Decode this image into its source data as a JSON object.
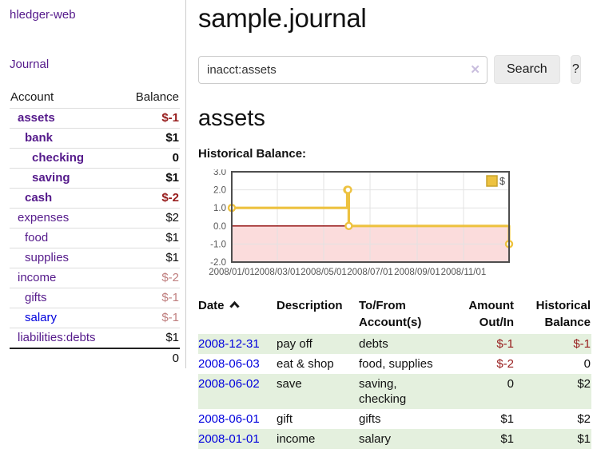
{
  "colors": {
    "link_purple": "#551a8b",
    "link_blue": "#0000dd",
    "negative_strong": "#971c1c",
    "negative_soft": "#bf7e7e",
    "row_stripe_green": "#e4f0de",
    "series_gold": "#edc240",
    "negative_region_pink": "#fbdcdc",
    "zero_line_red": "#8b0000"
  },
  "sidebar": {
    "brand": "hledger-web",
    "nav": {
      "journal": "Journal"
    },
    "accounts": {
      "headers": {
        "account": "Account",
        "balance": "Balance"
      },
      "rows": [
        {
          "name": "assets",
          "balance": "$-1",
          "depth": 1,
          "bold": true,
          "balance_style": "neg-strong",
          "link_style": "purple"
        },
        {
          "name": "bank",
          "balance": "$1",
          "depth": 2,
          "bold": true,
          "balance_style": "pos",
          "link_style": "purple"
        },
        {
          "name": "checking",
          "balance": "0",
          "depth": 3,
          "bold": true,
          "balance_style": "pos",
          "link_style": "purple"
        },
        {
          "name": "saving",
          "balance": "$1",
          "depth": 3,
          "bold": true,
          "balance_style": "pos",
          "link_style": "purple"
        },
        {
          "name": "cash",
          "balance": "$-2",
          "depth": 2,
          "bold": true,
          "balance_style": "neg-strong",
          "link_style": "purple"
        },
        {
          "name": "expenses",
          "balance": "$2",
          "depth": 1,
          "bold": false,
          "balance_style": "pos",
          "link_style": "purple"
        },
        {
          "name": "food",
          "balance": "$1",
          "depth": 2,
          "bold": false,
          "balance_style": "pos",
          "link_style": "purple"
        },
        {
          "name": "supplies",
          "balance": "$1",
          "depth": 2,
          "bold": false,
          "balance_style": "pos",
          "link_style": "purple"
        },
        {
          "name": "income",
          "balance": "$-2",
          "depth": 1,
          "bold": false,
          "balance_style": "neg-soft",
          "link_style": "purple"
        },
        {
          "name": "gifts",
          "balance": "$-1",
          "depth": 2,
          "bold": false,
          "balance_style": "neg-soft",
          "link_style": "purple"
        },
        {
          "name": "salary",
          "balance": "$-1",
          "depth": 2,
          "bold": false,
          "balance_style": "neg-soft",
          "link_style": "blue"
        },
        {
          "name": "liabilities:debts",
          "balance": "$1",
          "depth": 1,
          "bold": false,
          "balance_style": "pos",
          "link_style": "purple"
        }
      ],
      "total": "0"
    }
  },
  "main": {
    "title": "sample.journal",
    "search": {
      "value": "inacct:assets",
      "clear_icon": "✕",
      "search_button": "Search",
      "help_button": "?"
    },
    "account_heading": "assets",
    "section_label": "Historical Balance:"
  },
  "chart_data": {
    "type": "line",
    "step": true,
    "title": "Historical Balance:",
    "series": [
      {
        "name": "$",
        "color": "#edc240",
        "points": [
          {
            "date": "2008-01-01",
            "value": 1
          },
          {
            "date": "2008-06-01",
            "value": 2
          },
          {
            "date": "2008-06-02",
            "value": 2
          },
          {
            "date": "2008-06-03",
            "value": 0
          },
          {
            "date": "2008-12-31",
            "value": -1
          }
        ]
      }
    ],
    "x_start": "2008-01-01",
    "x_end": "2008-12-31",
    "xticks": [
      {
        "date": "2008-01-01",
        "label": "2008/01/01"
      },
      {
        "date": "2008-03-01",
        "label": "2008/03/01"
      },
      {
        "date": "2008-05-01",
        "label": "2008/05/01"
      },
      {
        "date": "2008-07-01",
        "label": "2008/07/01"
      },
      {
        "date": "2008-09-01",
        "label": "2008/09/01"
      },
      {
        "date": "2008-11-01",
        "label": "2008/11/01"
      }
    ],
    "yticks": [
      "3.0",
      "2.0",
      "1.0",
      "0.0",
      "-1.0",
      "-2.0"
    ],
    "ylim": [
      -2,
      3
    ],
    "grid": true,
    "legend": {
      "label": "$",
      "position": "top-right"
    },
    "negative_region": true
  },
  "register": {
    "headers": {
      "date": "Date",
      "description": "Description",
      "accounts": "To/From Account(s)",
      "amount": "Amount Out/In",
      "balance": "Historical Balance"
    },
    "sort": "ascending",
    "rows": [
      {
        "date": "2008-12-31",
        "description": "pay off",
        "accounts": "debts",
        "amount": "$-1",
        "amount_style": "neg-strong",
        "balance": "$-1",
        "balance_style": "neg-strong"
      },
      {
        "date": "2008-06-03",
        "description": "eat & shop",
        "accounts": "food, supplies",
        "amount": "$-2",
        "amount_style": "neg-strong",
        "balance": "0",
        "balance_style": "pos"
      },
      {
        "date": "2008-06-02",
        "description": "save",
        "accounts": "saving, checking",
        "amount": "0",
        "amount_style": "pos",
        "balance": "$2",
        "balance_style": "pos"
      },
      {
        "date": "2008-06-01",
        "description": "gift",
        "accounts": "gifts",
        "amount": "$1",
        "amount_style": "pos",
        "balance": "$2",
        "balance_style": "pos"
      },
      {
        "date": "2008-01-01",
        "description": "income",
        "accounts": "salary",
        "amount": "$1",
        "amount_style": "pos",
        "balance": "$1",
        "balance_style": "pos"
      }
    ]
  }
}
